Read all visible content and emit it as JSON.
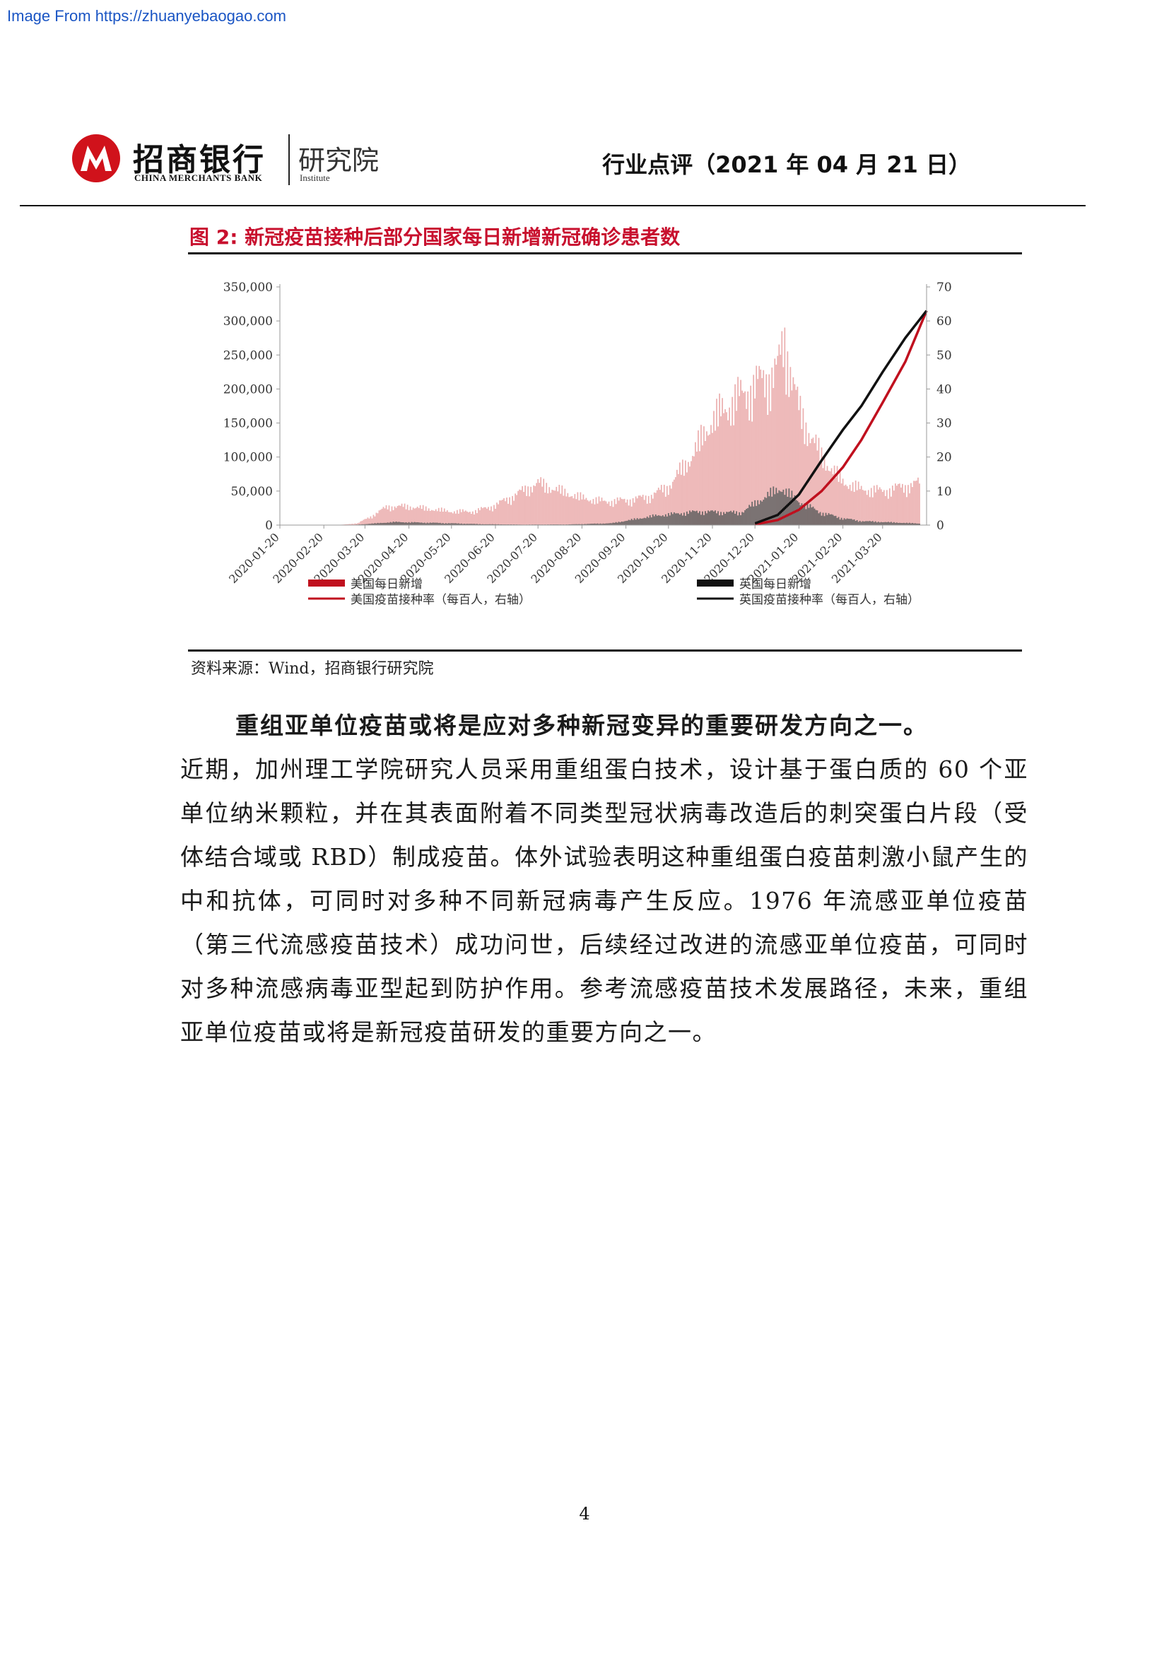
{
  "watermark": "Image From https://zhuanyebaogao.com",
  "header": {
    "logo_cn": "招商银行",
    "logo_en": "CHINA MERCHANTS BANK",
    "institute_cn": "研究院",
    "institute_en": "Institute",
    "doc_type": "行业点评（2021 年 04 月 21 日）"
  },
  "figure": {
    "title": "图 2:  新冠疫苗接种后部分国家每日新增新冠确诊患者数",
    "source": "资料来源：Wind，招商银行研究院"
  },
  "chart_data": {
    "type": "bar",
    "title": "",
    "y_left_ticks": [
      "0",
      "50,000",
      "100,000",
      "150,000",
      "200,000",
      "250,000",
      "300,000",
      "350,000"
    ],
    "y_right_ticks": [
      "0",
      "10",
      "20",
      "30",
      "40",
      "50",
      "60",
      "70"
    ],
    "ylim_left": [
      0,
      350000
    ],
    "ylim_right": [
      0,
      70
    ],
    "x_ticks": [
      "2020-01-20",
      "2020-02-20",
      "2020-03-20",
      "2020-04-20",
      "2020-05-20",
      "2020-06-20",
      "2020-07-20",
      "2020-08-20",
      "2020-09-20",
      "2020-10-20",
      "2020-11-20",
      "2020-12-20",
      "2021-01-20",
      "2021-02-20",
      "2021-03-20"
    ],
    "x_range": [
      "2020-01-20",
      "2021-04-20"
    ],
    "legend": [
      {
        "label": "美国每日新增",
        "kind": "bar",
        "color": "#c0101e"
      },
      {
        "label": "英国每日新增",
        "kind": "bar",
        "color": "#111111"
      },
      {
        "label": "美国疫苗接种率（每百人，右轴）",
        "kind": "line",
        "color": "#c0101e"
      },
      {
        "label": "英国疫苗接种率（每百人，右轴）",
        "kind": "line",
        "color": "#111111"
      }
    ],
    "legend_position": "bottom",
    "series": [
      {
        "name": "美国每日新增",
        "type": "bar",
        "axis": "left",
        "color": "#e8a0a0",
        "points": [
          [
            "2020-03-01",
            0
          ],
          [
            "2020-03-15",
            3000
          ],
          [
            "2020-03-25",
            15000
          ],
          [
            "2020-04-05",
            30000
          ],
          [
            "2020-04-20",
            30000
          ],
          [
            "2020-05-05",
            26000
          ],
          [
            "2020-05-20",
            22000
          ],
          [
            "2020-06-05",
            22000
          ],
          [
            "2020-06-20",
            32000
          ],
          [
            "2020-07-05",
            50000
          ],
          [
            "2020-07-20",
            68000
          ],
          [
            "2020-08-05",
            55000
          ],
          [
            "2020-08-20",
            44000
          ],
          [
            "2020-09-05",
            38000
          ],
          [
            "2020-09-20",
            40000
          ],
          [
            "2020-10-05",
            45000
          ],
          [
            "2020-10-20",
            62000
          ],
          [
            "2020-11-05",
            110000
          ],
          [
            "2020-11-20",
            170000
          ],
          [
            "2020-12-05",
            200000
          ],
          [
            "2020-12-20",
            225000
          ],
          [
            "2021-01-05",
            250000
          ],
          [
            "2021-01-10",
            300000
          ],
          [
            "2021-01-20",
            185000
          ],
          [
            "2021-02-05",
            110000
          ],
          [
            "2021-02-20",
            70000
          ],
          [
            "2021-03-05",
            58000
          ],
          [
            "2021-03-20",
            55000
          ],
          [
            "2021-04-15",
            68000
          ]
        ]
      },
      {
        "name": "英国每日新增",
        "type": "bar",
        "axis": "left",
        "color": "#555555",
        "points": [
          [
            "2020-03-10",
            0
          ],
          [
            "2020-04-10",
            5000
          ],
          [
            "2020-05-10",
            3500
          ],
          [
            "2020-06-10",
            1500
          ],
          [
            "2020-07-10",
            700
          ],
          [
            "2020-08-10",
            1000
          ],
          [
            "2020-09-10",
            3000
          ],
          [
            "2020-10-10",
            15000
          ],
          [
            "2020-11-10",
            22000
          ],
          [
            "2020-12-10",
            20000
          ],
          [
            "2020-12-30",
            50000
          ],
          [
            "2021-01-08",
            60000
          ],
          [
            "2021-01-20",
            38000
          ],
          [
            "2021-02-05",
            20000
          ],
          [
            "2021-02-20",
            11000
          ],
          [
            "2021-03-05",
            6500
          ],
          [
            "2021-03-20",
            5000
          ],
          [
            "2021-04-15",
            2500
          ]
        ]
      },
      {
        "name": "美国疫苗接种率（每百人，右轴）",
        "type": "line",
        "axis": "right",
        "color": "#c0101e",
        "points": [
          [
            "2020-12-20",
            0.2
          ],
          [
            "2021-01-05",
            1.5
          ],
          [
            "2021-01-20",
            4.5
          ],
          [
            "2021-02-05",
            10
          ],
          [
            "2021-02-20",
            17
          ],
          [
            "2021-03-05",
            25
          ],
          [
            "2021-03-20",
            36
          ],
          [
            "2021-04-05",
            48
          ],
          [
            "2021-04-20",
            63
          ]
        ]
      },
      {
        "name": "英国疫苗接种率（每百人，右轴）",
        "type": "line",
        "axis": "right",
        "color": "#111111",
        "points": [
          [
            "2020-12-20",
            0.5
          ],
          [
            "2021-01-05",
            3
          ],
          [
            "2021-01-20",
            9
          ],
          [
            "2021-02-05",
            19
          ],
          [
            "2021-02-20",
            28
          ],
          [
            "2021-03-05",
            35
          ],
          [
            "2021-03-20",
            45
          ],
          [
            "2021-04-05",
            55
          ],
          [
            "2021-04-20",
            63
          ]
        ]
      }
    ]
  },
  "body": {
    "lead": "重组亚单位疫苗或将是应对多种新冠变异的重要研发方向之一。",
    "text": "近期，加州理工学院研究人员采用重组蛋白技术，设计基于蛋白质的 60 个亚单位纳米颗粒，并在其表面附着不同类型冠状病毒改造后的刺突蛋白片段（受体结合域或 RBD）制成疫苗。体外试验表明这种重组蛋白疫苗刺激小鼠产生的中和抗体，可同时对多种不同新冠病毒产生反应。1976 年流感亚单位疫苗（第三代流感疫苗技术）成功问世，后续经过改进的流感亚单位疫苗，可同时对多种流感病毒亚型起到防护作用。参考流感疫苗技术发展路径，未来，重组亚单位疫苗或将是新冠疫苗研发的重要方向之一。"
  },
  "page_number": "4"
}
